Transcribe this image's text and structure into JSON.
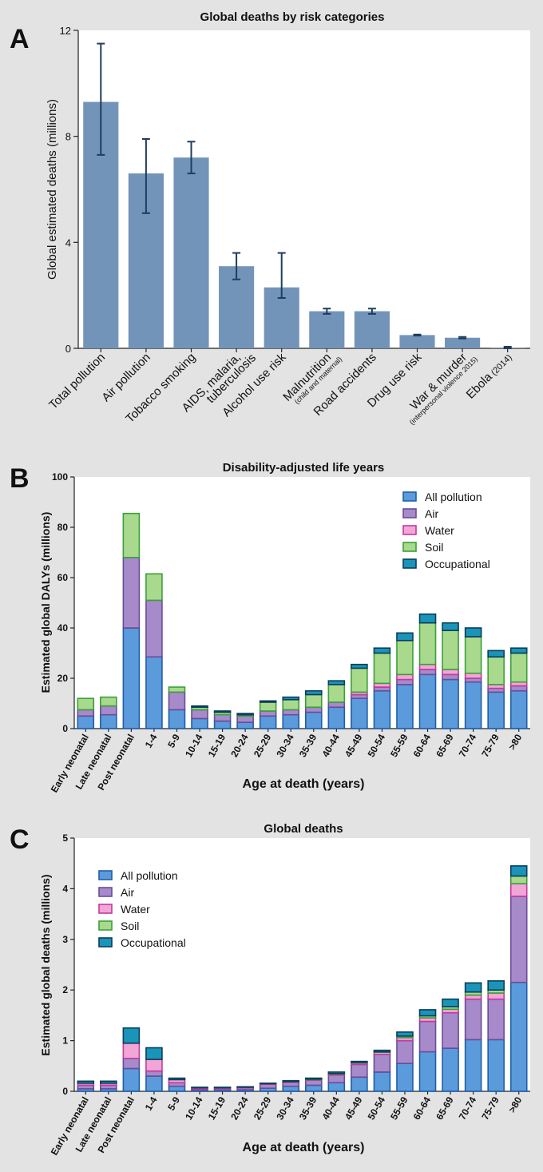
{
  "panels": {
    "a": "A",
    "b": "B",
    "c": "C"
  },
  "chart_data": [
    {
      "type": "bar",
      "title": "Global deaths by risk categories",
      "ylabel": "Global estimated deaths (millions)",
      "xlabel": "",
      "ylim": [
        0,
        12
      ],
      "yticks": [
        0,
        4,
        8,
        12
      ],
      "categories": [
        {
          "main": "Total pollution",
          "sub": ""
        },
        {
          "main": "Air pollution",
          "sub": ""
        },
        {
          "main": "Tobacco smoking",
          "sub": ""
        },
        {
          "main": "AIDS, malaria,",
          "main2": "tuberculosis",
          "sub": ""
        },
        {
          "main": "Alcohol use risk",
          "sub": ""
        },
        {
          "main": "Malnutrition",
          "sub": "(child and maternal)"
        },
        {
          "main": "Road accidents",
          "sub": ""
        },
        {
          "main": "Drug use risk",
          "sub": ""
        },
        {
          "main": "War & murder",
          "sub": "(interpersonal violence 2015)"
        },
        {
          "main": "Ebola",
          "suffix": "(2014)",
          "sub": ""
        }
      ],
      "values": [
        9.3,
        6.6,
        7.2,
        3.1,
        2.3,
        1.4,
        1.4,
        0.5,
        0.4,
        0.01
      ],
      "err_low": [
        7.3,
        5.1,
        6.6,
        2.6,
        1.9,
        1.3,
        1.3,
        0.48,
        0.37,
        0.0
      ],
      "err_high": [
        11.5,
        7.9,
        7.8,
        3.6,
        3.6,
        1.5,
        1.5,
        0.52,
        0.43,
        0.06
      ],
      "colors": {
        "bar": "#7394b9",
        "error": "#1f3d5c"
      }
    },
    {
      "type": "bar",
      "stacked": true,
      "title": "Disability-adjusted life years",
      "ylabel": "Estimated global DALYs (millions)",
      "xlabel": "Age at death (years)",
      "ylim": [
        0,
        100
      ],
      "yticks": [
        0,
        20,
        40,
        60,
        80,
        100
      ],
      "legend_position": "top-right",
      "categories": [
        "Early neonatal",
        "Late neonatal",
        "Post neonatal",
        "1-4",
        "5-9",
        "10-14",
        "15-19",
        "20-24",
        "25-29",
        "30-34",
        "35-39",
        "40-44",
        "45-49",
        "50-54",
        "55-59",
        "60-64",
        "65-69",
        "70-74",
        "75-79",
        ">80"
      ],
      "series": [
        {
          "name": "All pollution",
          "fill": "#5b9bdb",
          "stroke": "#1f5ea8",
          "values": [
            5,
            5.5,
            40,
            28.5,
            7.5,
            4,
            3,
            2.5,
            5,
            5.5,
            6.5,
            8.5,
            12,
            15,
            17.5,
            21.5,
            19.5,
            18.5,
            14.5,
            15
          ]
        },
        {
          "name": "Air",
          "fill": "#a78ac9",
          "stroke": "#6a4c99",
          "values": [
            2.5,
            3.5,
            28,
            22.5,
            7,
            3.5,
            2.5,
            2.5,
            2,
            2,
            2,
            2,
            1.5,
            1.5,
            2,
            2,
            2,
            1.5,
            1.5,
            2
          ]
        },
        {
          "name": "Water",
          "fill": "#f2a6d8",
          "stroke": "#c43a9a",
          "values": [
            0,
            0,
            0,
            0,
            0,
            0,
            0,
            0,
            0,
            0,
            0,
            0,
            1,
            1.5,
            2,
            2,
            2,
            2,
            1.5,
            1.5
          ]
        },
        {
          "name": "Soil",
          "fill": "#a9d98c",
          "stroke": "#3aa03a",
          "values": [
            4.5,
            3.5,
            17.5,
            10.5,
            2,
            1,
            1,
            0.5,
            3.5,
            4,
            5,
            7,
            9.5,
            12,
            13.5,
            16.5,
            15.5,
            14.5,
            11,
            11.5
          ]
        },
        {
          "name": "Occupational",
          "fill": "#1a94b8",
          "stroke": "#0a3d5c",
          "values": [
            0,
            0,
            0,
            0,
            0,
            0.5,
            0.5,
            0.5,
            0.5,
            1,
            1.5,
            1.5,
            1.5,
            2,
            3,
            3.5,
            3,
            3.5,
            2.5,
            2
          ]
        }
      ]
    },
    {
      "type": "bar",
      "stacked": true,
      "title": "Global deaths",
      "ylabel": "Estimated global deaths (millions)",
      "xlabel": "Age at death (years)",
      "ylim": [
        0,
        5
      ],
      "yticks": [
        0,
        1,
        2,
        3,
        4,
        5
      ],
      "legend_position": "top-left",
      "categories": [
        "Early neonatal",
        "Late neonatal",
        "Post neonatal",
        "1-4",
        "5-9",
        "10-14",
        "15-19",
        "20-24",
        "25-29",
        "30-34",
        "35-39",
        "40-44",
        "45-49",
        "50-54",
        "55-59",
        "60-64",
        "65-69",
        "70-74",
        "75-79",
        ">80"
      ],
      "series": [
        {
          "name": "All pollution",
          "fill": "#5b9bdb",
          "stroke": "#1f5ea8",
          "values": [
            0.05,
            0.05,
            0.45,
            0.3,
            0.1,
            0.03,
            0.03,
            0.03,
            0.06,
            0.1,
            0.12,
            0.17,
            0.28,
            0.38,
            0.55,
            0.78,
            0.85,
            1.02,
            1.02,
            2.15
          ]
        },
        {
          "name": "Air",
          "fill": "#a78ac9",
          "stroke": "#6a4c99",
          "values": [
            0.07,
            0.07,
            0.2,
            0.1,
            0.07,
            0.02,
            0.03,
            0.04,
            0.08,
            0.08,
            0.1,
            0.15,
            0.25,
            0.35,
            0.45,
            0.6,
            0.7,
            0.8,
            0.8,
            1.7
          ]
        },
        {
          "name": "Water",
          "fill": "#f2a6d8",
          "stroke": "#c43a9a",
          "values": [
            0.04,
            0.04,
            0.3,
            0.23,
            0.06,
            0.02,
            0.01,
            0.01,
            0.01,
            0.01,
            0.01,
            0.02,
            0.03,
            0.04,
            0.06,
            0.07,
            0.07,
            0.08,
            0.12,
            0.25
          ]
        },
        {
          "name": "Soil",
          "fill": "#a9d98c",
          "stroke": "#3aa03a",
          "values": [
            0,
            0,
            0,
            0,
            0,
            0,
            0,
            0,
            0,
            0,
            0.01,
            0.01,
            0.01,
            0.01,
            0.03,
            0.04,
            0.05,
            0.06,
            0.06,
            0.15
          ]
        },
        {
          "name": "Occupational",
          "fill": "#1a94b8",
          "stroke": "#0a3d5c",
          "values": [
            0.04,
            0.04,
            0.3,
            0.23,
            0.03,
            0.01,
            0.01,
            0.01,
            0.01,
            0.02,
            0.02,
            0.03,
            0.02,
            0.03,
            0.08,
            0.12,
            0.15,
            0.18,
            0.18,
            0.2
          ]
        }
      ]
    }
  ]
}
